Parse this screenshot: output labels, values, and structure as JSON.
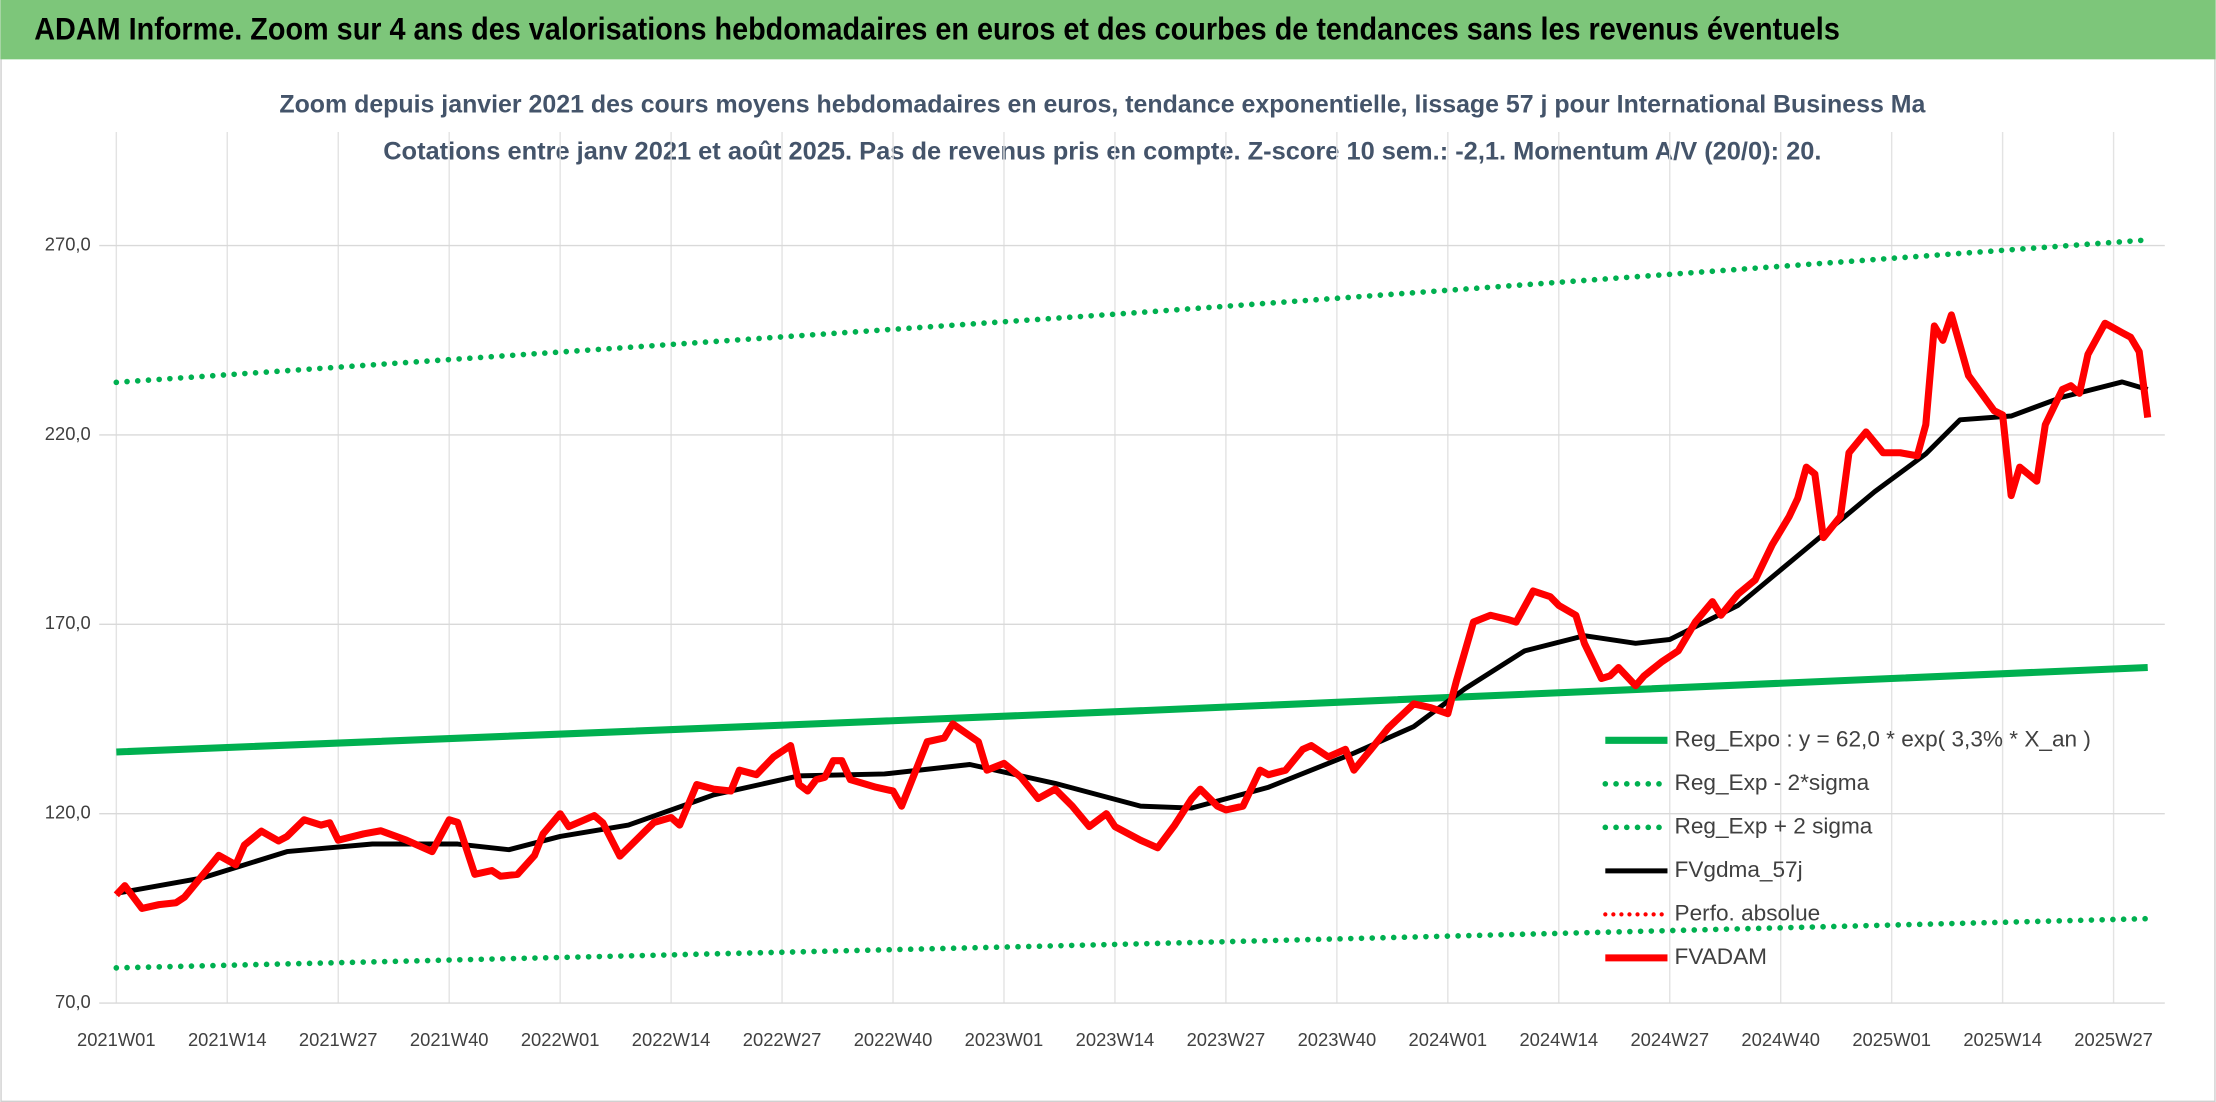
{
  "header": {
    "title": "ADAM Informe. Zoom sur 4 ans des valorisations hebdomadaires en euros et des courbes de tendances sans les revenus éventuels"
  },
  "chart_data": {
    "type": "line",
    "title": "Zoom depuis janvier 2021 des cours moyens hebdomadaires en euros, tendance exponentielle, lissage 57 j pour International Business Ma",
    "subtitle": "Cotations entre janv 2021 et août 2025. Pas de revenus pris en compte. Z-score 10 sem.: -2,1. Momentum A/V (20/0): 20.",
    "xlim": [
      -2,
      240
    ],
    "xticks": [
      {
        "value": 0,
        "label": "2021W01"
      },
      {
        "value": 13,
        "label": "2021W14"
      },
      {
        "value": 26,
        "label": "2021W27"
      },
      {
        "value": 39,
        "label": "2021W40"
      },
      {
        "value": 52,
        "label": "2022W01"
      },
      {
        "value": 65,
        "label": "2022W14"
      },
      {
        "value": 78,
        "label": "2022W27"
      },
      {
        "value": 91,
        "label": "2022W40"
      },
      {
        "value": 104,
        "label": "2023W01"
      },
      {
        "value": 117,
        "label": "2023W14"
      },
      {
        "value": 130,
        "label": "2023W27"
      },
      {
        "value": 143,
        "label": "2023W40"
      },
      {
        "value": 156,
        "label": "2024W01"
      },
      {
        "value": 169,
        "label": "2024W14"
      },
      {
        "value": 182,
        "label": "2024W27"
      },
      {
        "value": 195,
        "label": "2024W40"
      },
      {
        "value": 208,
        "label": "2025W01"
      },
      {
        "value": 221,
        "label": "2025W14"
      },
      {
        "value": 234,
        "label": "2025W27"
      }
    ],
    "ylim": [
      70,
      300
    ],
    "yticks": [
      {
        "value": 70,
        "label": "70,0"
      },
      {
        "value": 120,
        "label": "120,0"
      },
      {
        "value": 170,
        "label": "170,0"
      },
      {
        "value": 220,
        "label": "220,0"
      },
      {
        "value": 270,
        "label": "270,0"
      }
    ],
    "grid": true,
    "legend": "lower right",
    "series": [
      {
        "name": "Reg_Expo : y = 62,0 * exp( 3,3% *  X_an )",
        "color": "#00b050",
        "style": "solid",
        "width": 5,
        "x": [
          0,
          119,
          238
        ],
        "values": [
          136.3,
          147.1,
          158.6
        ]
      },
      {
        "name": "Reg_Exp - 2*sigma",
        "color": "#00b050",
        "style": "dotted",
        "width": 4,
        "x": [
          0,
          119,
          238
        ],
        "values": [
          79.3,
          85.6,
          92.3
        ]
      },
      {
        "name": "Reg_Exp + 2 sigma",
        "color": "#00b050",
        "style": "dotted",
        "width": 4,
        "x": [
          0,
          119,
          238
        ],
        "values": [
          233.9,
          252.2,
          271.5
        ]
      },
      {
        "name": "FVgdma_57j",
        "color": "#000000",
        "style": "solid",
        "width": 3.5,
        "x": [
          0,
          10,
          20,
          30,
          40,
          46,
          52,
          60,
          70,
          80,
          90,
          100,
          110,
          120,
          126,
          135,
          145,
          152,
          158,
          165,
          172,
          178,
          182,
          190,
          198,
          206,
          212,
          216,
          222,
          228,
          235,
          238
        ],
        "values": [
          99,
          103,
          110,
          112,
          112,
          110.5,
          114,
          117,
          125,
          130,
          130.5,
          133,
          128,
          122,
          121.5,
          127,
          136,
          143,
          153,
          163,
          167,
          165,
          166,
          175,
          190,
          205,
          215,
          224,
          225,
          230,
          234,
          232
        ]
      },
      {
        "name": "Perfo. absolue",
        "color": "#ff0000",
        "style": "dotted",
        "width": 3,
        "x": [],
        "values": []
      },
      {
        "name": "FVADAM",
        "color": "#ff0000",
        "style": "solid",
        "width": 5,
        "x": [
          0,
          1,
          3,
          5,
          7,
          8,
          10,
          12,
          14,
          15,
          17,
          19,
          20,
          22,
          24,
          25,
          26,
          29,
          31,
          34,
          37,
          39,
          40,
          42,
          44,
          45,
          47,
          49,
          50,
          52,
          53,
          56,
          57,
          59,
          62,
          63,
          65,
          66,
          68,
          70,
          72,
          73,
          75,
          77,
          79,
          80,
          81,
          82,
          83,
          84,
          85,
          86,
          89,
          91,
          92,
          94,
          95,
          97,
          98,
          101,
          102,
          104,
          106,
          108,
          110,
          112,
          114,
          116,
          117,
          120,
          122,
          124,
          126,
          127,
          129,
          130,
          132,
          134,
          135,
          137,
          139,
          140,
          142,
          144,
          145,
          147,
          149,
          152,
          154,
          156,
          157,
          159,
          161,
          163,
          164,
          166,
          168,
          169,
          171,
          172,
          174,
          175,
          176,
          178,
          179,
          181,
          183,
          185,
          187,
          188,
          190,
          192,
          194,
          196,
          197,
          198,
          199,
          200,
          202,
          203,
          205,
          207,
          209,
          211,
          212,
          213,
          214,
          215,
          217,
          220,
          221,
          222,
          223,
          225,
          226,
          228,
          229,
          230,
          231,
          233,
          235,
          236,
          237,
          238
        ],
        "values": [
          98.6,
          101,
          95,
          96,
          96.5,
          98,
          103.5,
          109,
          106.5,
          111.7,
          115.4,
          112.8,
          114,
          118.4,
          117,
          117.6,
          113,
          114.7,
          115.5,
          113,
          110,
          118.4,
          117.7,
          104,
          105,
          103.5,
          104,
          109,
          114.7,
          120,
          116.6,
          119.5,
          117.6,
          108.8,
          115.5,
          117.7,
          119,
          117,
          127.7,
          126.5,
          126,
          131.5,
          130.3,
          135,
          138,
          127.7,
          126,
          129,
          129.6,
          134,
          134,
          129,
          127,
          126,
          122,
          133.3,
          139,
          140,
          143.7,
          139,
          131.5,
          133.3,
          129.6,
          124,
          126.5,
          122,
          116.6,
          120,
          116.6,
          113,
          111,
          117,
          124,
          126.5,
          122,
          121,
          122,
          131.5,
          130.3,
          131.5,
          137,
          138,
          135,
          137,
          131.5,
          137,
          142.6,
          149,
          148,
          146.4,
          155,
          170.6,
          172.4,
          171.3,
          170.6,
          178.8,
          177.3,
          175,
          172.4,
          165,
          155.7,
          156.4,
          158.6,
          153.8,
          156.4,
          160,
          163,
          170.6,
          176,
          172.4,
          178,
          181.7,
          191,
          198.5,
          203.3,
          211.5,
          209.7,
          192.9,
          198.5,
          215.3,
          220.8,
          215.3,
          215.3,
          214.5,
          222.7,
          248.8,
          245,
          251.7,
          235.7,
          226.4,
          225.3,
          204,
          211.5,
          207.8,
          222.7,
          232,
          233,
          231,
          241.3,
          249.5,
          247,
          245.8,
          242,
          224.6
        ]
      }
    ]
  }
}
